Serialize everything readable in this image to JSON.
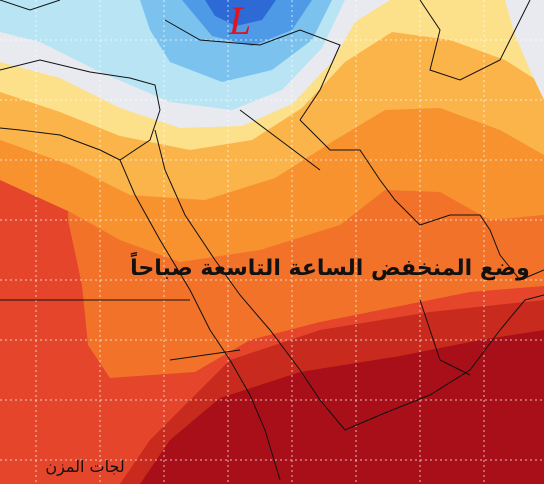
{
  "map": {
    "low_label": "L",
    "caption": "وضع المنخفض الساعة التاسعة صباحاً",
    "watermark": "لجات المزن"
  }
}
